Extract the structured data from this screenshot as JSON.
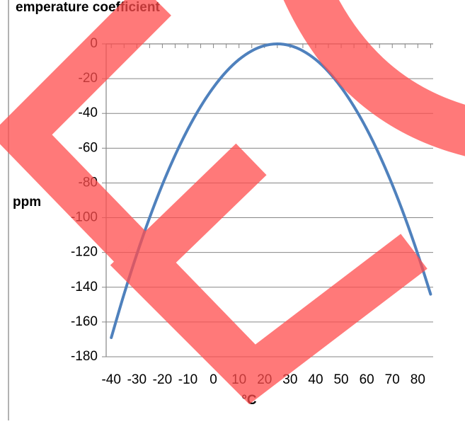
{
  "chart_data": {
    "type": "line",
    "title": "",
    "title_fragment": "emperature coefficient",
    "xlabel": "°C",
    "ylabel": "ppm",
    "x_ticks": [
      "-40",
      "-30",
      "-20",
      "-10",
      "0",
      "10",
      "20",
      "30",
      "40",
      "50",
      "60",
      "70",
      "80"
    ],
    "y_ticks": [
      "0",
      "-20",
      "-40",
      "-60",
      "-80",
      "-100",
      "-120",
      "-140",
      "-160",
      "-180"
    ],
    "xlim": [
      -40,
      85
    ],
    "ylim": [
      -180,
      0
    ],
    "grid": "horizontal",
    "series": [
      {
        "color": "#4f81bd",
        "x": [
          -40,
          -35,
          -30,
          -25,
          -20,
          -15,
          -10,
          -5,
          0,
          5,
          10,
          15,
          20,
          25,
          30,
          35,
          40,
          45,
          50,
          55,
          60,
          65,
          70,
          75,
          80,
          85
        ],
        "y": [
          -169,
          -144,
          -121,
          -100,
          -81,
          -64,
          -49,
          -36,
          -25,
          -16,
          -9,
          -4,
          -1,
          0,
          -1,
          -4,
          -9,
          -16,
          -25,
          -36,
          -49,
          -64,
          -81,
          -100,
          -121,
          -144
        ]
      }
    ]
  },
  "overlay": {
    "color": "#ff4d4d",
    "opacity": 0.75,
    "shape": "red diagonal watermark strokes (chevron arrow and arc)"
  },
  "colors": {
    "background": "#ffffff",
    "gridline": "#868686",
    "axis": "#868686",
    "series": "#4f81bd",
    "frame": "#7f7f7f"
  }
}
